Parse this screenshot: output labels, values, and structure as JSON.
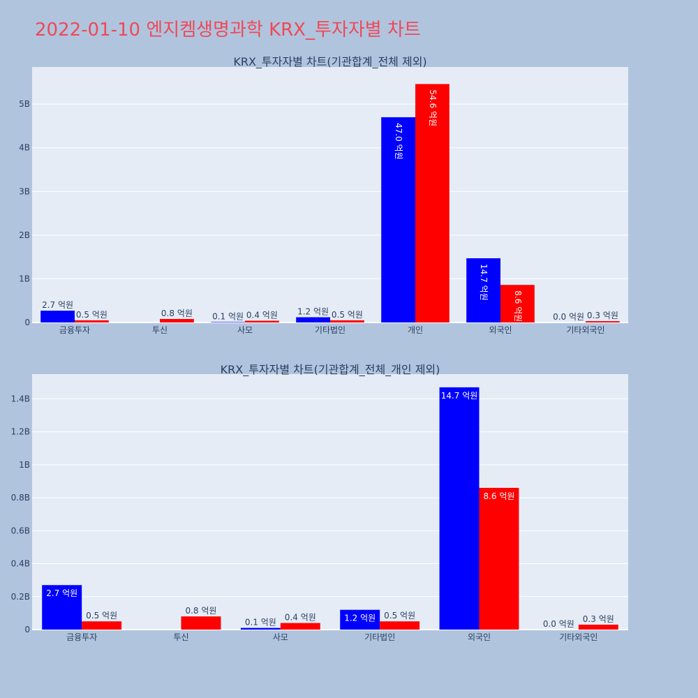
{
  "title": "2022-01-10 엔지켐생명과학 KRX_투자자별 차트",
  "colors": {
    "buy": "#0000ff",
    "sell": "#ff0000",
    "plot_bg": "#e5ecf6",
    "page_bg": "#b0c4de",
    "title": "#ef4957"
  },
  "chart_data": [
    {
      "type": "bar",
      "title": "KRX_투자자별 차트(기관합계_전체 제외)",
      "categories": [
        "금융투자",
        "투신",
        "사모",
        "기타법인",
        "개인",
        "외국인",
        "기타외국인"
      ],
      "series": [
        {
          "values": [
            0.27,
            0,
            0.01,
            0.12,
            4.7,
            1.47,
            0.0
          ],
          "labels": [
            "2.7 억원",
            "",
            "0.1 억원",
            "1.2 억원",
            "47.0 억원",
            "14.7 억원",
            "0.0 억원"
          ]
        },
        {
          "values": [
            0.05,
            0.08,
            0.04,
            0.05,
            5.46,
            0.86,
            0.03
          ],
          "labels": [
            "0.5 억원",
            "0.8 억원",
            "0.4 억원",
            "0.5 억원",
            "54.6 억원",
            "8.6 억원",
            "0.3 억원"
          ]
        }
      ],
      "yticks": [
        0,
        1,
        2,
        3,
        4,
        5
      ],
      "ytick_labels": [
        "0",
        "1B",
        "2B",
        "3B",
        "4B",
        "5B"
      ],
      "ylim": [
        0,
        5.85
      ],
      "grid": true
    },
    {
      "type": "bar",
      "title": "KRX_투자자별 차트(기관합계_전체_개인 제외)",
      "categories": [
        "금융투자",
        "투신",
        "사모",
        "기타법인",
        "외국인",
        "기타외국인"
      ],
      "series": [
        {
          "values": [
            0.27,
            0,
            0.01,
            0.12,
            1.47,
            0.0
          ],
          "labels": [
            "2.7 억원",
            "",
            "0.1 억원",
            "1.2 억원",
            "14.7 억원",
            "0.0 억원"
          ]
        },
        {
          "values": [
            0.05,
            0.08,
            0.04,
            0.05,
            0.86,
            0.03
          ],
          "labels": [
            "0.5 억원",
            "0.8 억원",
            "0.4 억원",
            "0.5 억원",
            "8.6 억원",
            "0.3 억원"
          ]
        }
      ],
      "yticks": [
        0,
        0.2,
        0.4,
        0.6,
        0.8,
        1.0,
        1.2,
        1.4
      ],
      "ytick_labels": [
        "0",
        "0.2B",
        "0.4B",
        "0.6B",
        "0.8B",
        "1B",
        "1.2B",
        "1.4B"
      ],
      "ylim": [
        0,
        1.55
      ],
      "grid": true
    }
  ]
}
